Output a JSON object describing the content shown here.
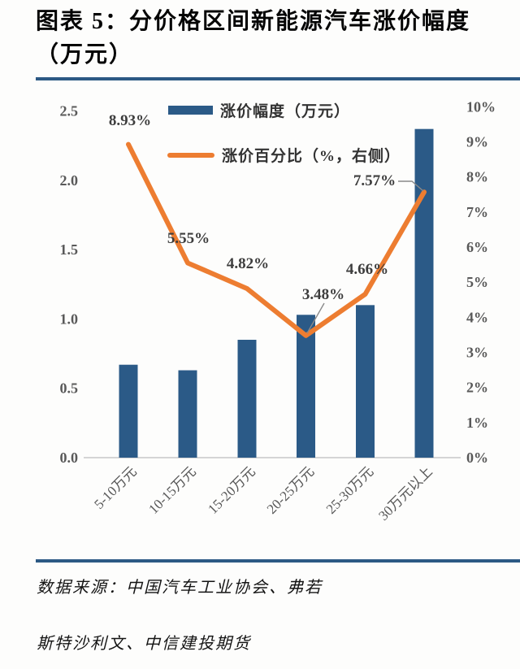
{
  "title": {
    "line1": "图表 5：分价格区间新能源汽车涨价幅度",
    "line2": "（万元）"
  },
  "legend": {
    "items": [
      {
        "label": "涨价幅度（万元）",
        "type": "bar"
      },
      {
        "label": "涨价百分比（%，右侧）",
        "type": "line"
      }
    ]
  },
  "source": {
    "line1": "数据来源：中国汽车工业协会、弗若",
    "line2": "斯特沙利文、中信建投期货"
  },
  "colors": {
    "bar": "#2B5A87",
    "line": "#ED7D31",
    "rule": "#2C5984",
    "axis_line": "#c8c8c8",
    "axis_text": "#595959",
    "label_text": "#3d3d3d",
    "leader": "#8a8a8a"
  },
  "chart_data": {
    "type": "bar",
    "subtype": "combo-bar-line",
    "title": "图表 5：分价格区间新能源汽车涨价幅度（万元）",
    "categories": [
      "5-10万元",
      "10-15万元",
      "15-20万元",
      "20-25万元",
      "25-30万元",
      "30万元以上"
    ],
    "series": [
      {
        "name": "涨价幅度（万元）",
        "type": "bar",
        "axis": "left",
        "values": [
          0.67,
          0.63,
          0.85,
          1.03,
          1.1,
          2.37
        ]
      },
      {
        "name": "涨价百分比（%，右侧）",
        "type": "line",
        "axis": "right",
        "values": [
          8.93,
          5.55,
          4.82,
          3.48,
          4.66,
          7.57
        ],
        "point_labels": [
          "8.93%",
          "5.55%",
          "4.82%",
          "3.48%",
          "4.66%",
          "7.57%"
        ]
      }
    ],
    "left_axis": {
      "ticks": [
        "2.5",
        "2.0",
        "1.5",
        "1.0",
        "0.5",
        "0.0"
      ],
      "min": 0,
      "max": 2.5
    },
    "right_axis": {
      "ticks": [
        "10%",
        "9%",
        "8%",
        "7%",
        "6%",
        "5%",
        "4%",
        "3%",
        "2%",
        "1%",
        "0%"
      ],
      "min": 0,
      "max": 10
    },
    "grid": false,
    "legend_position": "top"
  }
}
